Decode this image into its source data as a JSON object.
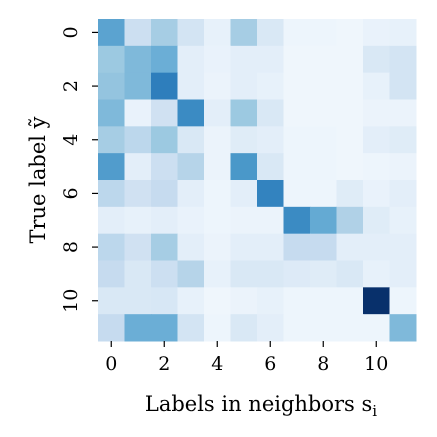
{
  "chart_data": {
    "type": "heatmap",
    "xlabel": "Labels in neighbors s",
    "xlabel_sub": "i",
    "ylabel": "True label ỹ",
    "x_tick_labels": [
      "0",
      "2",
      "4",
      "6",
      "8",
      "10"
    ],
    "x_tick_indices": [
      0,
      2,
      4,
      6,
      8,
      10
    ],
    "y_tick_labels": [
      "0",
      "2",
      "4",
      "6",
      "8",
      "10"
    ],
    "y_tick_indices": [
      0,
      2,
      4,
      6,
      8,
      10
    ],
    "colormap": "Blues",
    "value_range": [
      0,
      1
    ],
    "grid": false,
    "colorbar": false,
    "matrix": [
      [
        0.55,
        0.22,
        0.35,
        0.18,
        0.08,
        0.35,
        0.15,
        0.05,
        0.05,
        0.04,
        0.07,
        0.08
      ],
      [
        0.38,
        0.45,
        0.5,
        0.1,
        0.07,
        0.1,
        0.1,
        0.04,
        0.04,
        0.04,
        0.15,
        0.18
      ],
      [
        0.4,
        0.45,
        0.7,
        0.1,
        0.06,
        0.1,
        0.08,
        0.04,
        0.04,
        0.04,
        0.08,
        0.18
      ],
      [
        0.45,
        0.07,
        0.2,
        0.65,
        0.1,
        0.38,
        0.15,
        0.04,
        0.04,
        0.04,
        0.06,
        0.06
      ],
      [
        0.35,
        0.28,
        0.38,
        0.15,
        0.06,
        0.12,
        0.1,
        0.05,
        0.05,
        0.04,
        0.1,
        0.12
      ],
      [
        0.58,
        0.1,
        0.22,
        0.3,
        0.06,
        0.6,
        0.15,
        0.05,
        0.05,
        0.04,
        0.05,
        0.06
      ],
      [
        0.28,
        0.2,
        0.25,
        0.1,
        0.05,
        0.1,
        0.68,
        0.05,
        0.05,
        0.12,
        0.07,
        0.1
      ],
      [
        0.1,
        0.08,
        0.1,
        0.07,
        0.05,
        0.06,
        0.06,
        0.65,
        0.52,
        0.32,
        0.12,
        0.08
      ],
      [
        0.28,
        0.2,
        0.35,
        0.1,
        0.06,
        0.1,
        0.1,
        0.25,
        0.25,
        0.1,
        0.1,
        0.1
      ],
      [
        0.25,
        0.15,
        0.22,
        0.3,
        0.08,
        0.15,
        0.15,
        0.13,
        0.12,
        0.15,
        0.08,
        0.1
      ],
      [
        0.15,
        0.15,
        0.16,
        0.08,
        0.04,
        0.06,
        0.08,
        0.05,
        0.05,
        0.05,
        1.0,
        0.05
      ],
      [
        0.25,
        0.5,
        0.5,
        0.18,
        0.05,
        0.15,
        0.1,
        0.05,
        0.05,
        0.05,
        0.05,
        0.45
      ]
    ]
  }
}
